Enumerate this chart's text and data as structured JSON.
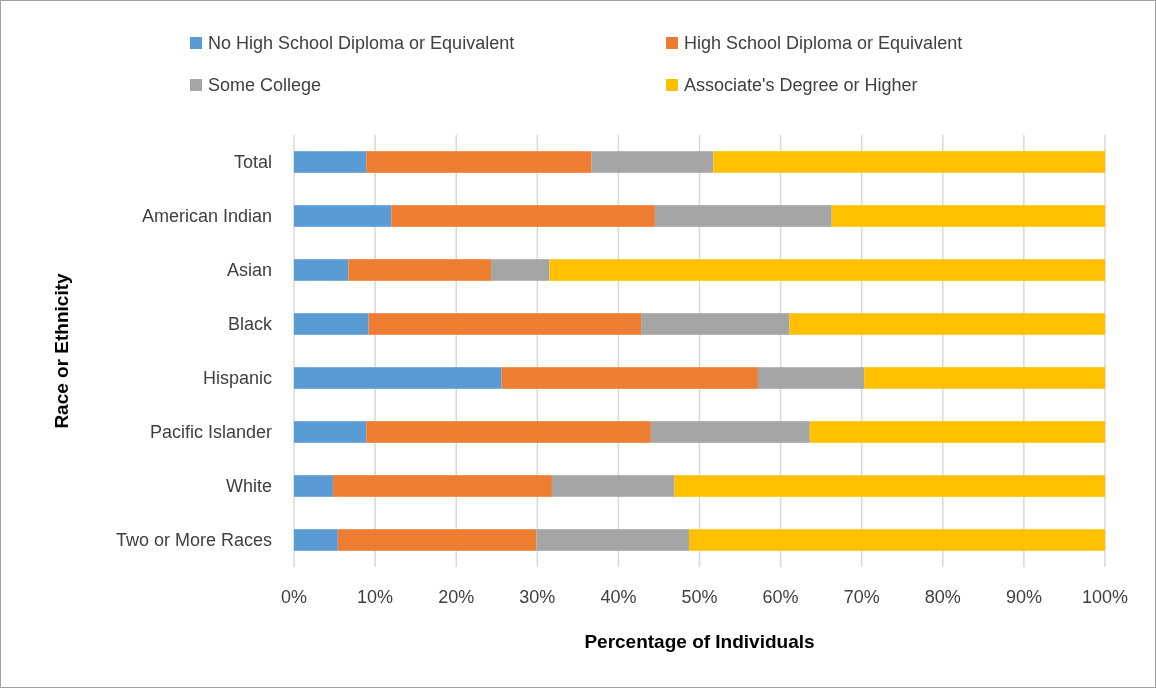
{
  "chart_data": {
    "type": "bar",
    "orientation": "horizontal",
    "stacked": true,
    "xlabel": "Percentage of Individuals",
    "ylabel": "Race or Ethnicity",
    "categories": [
      "Total",
      "American Indian",
      "Asian",
      "Black",
      "Hispanic",
      "Pacific Islander",
      "White",
      "Two or More Races"
    ],
    "series": [
      {
        "name": "No High School Diploma or Equivalent",
        "color": "#5b9bd5",
        "values": [
          8.9,
          12.0,
          6.7,
          9.2,
          25.6,
          8.9,
          4.8,
          5.4
        ]
      },
      {
        "name": "High School Diploma or Equivalent",
        "color": "#ed7d31",
        "values": [
          27.8,
          32.5,
          17.6,
          33.6,
          31.6,
          35.1,
          27.0,
          24.5
        ]
      },
      {
        "name": "Some College",
        "color": "#a5a5a5",
        "values": [
          15.0,
          21.8,
          7.2,
          18.3,
          13.1,
          19.6,
          15.1,
          18.8
        ]
      },
      {
        "name": "Associate's Degree or Higher",
        "color": "#ffc000",
        "values": [
          48.3,
          33.7,
          68.5,
          38.9,
          29.7,
          36.4,
          53.1,
          51.3
        ]
      }
    ],
    "xlim": [
      0,
      100
    ],
    "xticks": [
      {
        "value": 0,
        "label": "0%"
      },
      {
        "value": 10,
        "label": "10%"
      },
      {
        "value": 20,
        "label": "20%"
      },
      {
        "value": 30,
        "label": "30%"
      },
      {
        "value": 40,
        "label": "40%"
      },
      {
        "value": 50,
        "label": "50%"
      },
      {
        "value": 60,
        "label": "60%"
      },
      {
        "value": 70,
        "label": "70%"
      },
      {
        "value": 80,
        "label": "80%"
      },
      {
        "value": 90,
        "label": "90%"
      },
      {
        "value": 100,
        "label": "100%"
      }
    ],
    "grid": "x",
    "legend": "top"
  }
}
